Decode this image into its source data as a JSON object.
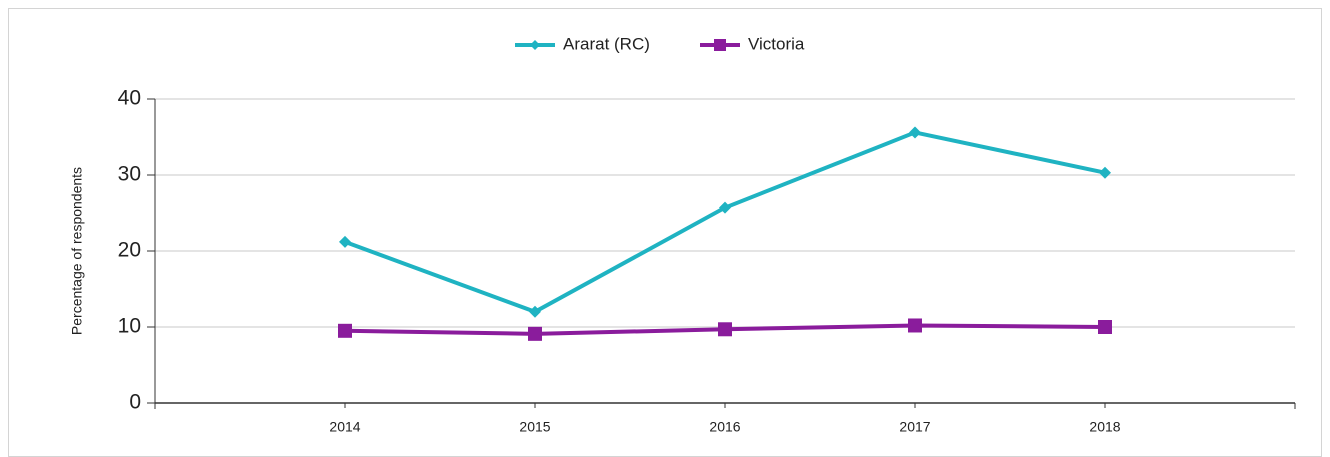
{
  "chart_data": {
    "type": "line",
    "y_label": "Percentage of respondents",
    "categories": [
      "2014",
      "2015",
      "2016",
      "2017",
      "2018"
    ],
    "series": [
      {
        "name": "Ararat (RC)",
        "color": "#1fb3c2",
        "marker": "diamond",
        "values": [
          21.2,
          12.0,
          25.7,
          35.6,
          30.3
        ]
      },
      {
        "name": "Victoria",
        "color": "#8a1c9c",
        "marker": "square",
        "values": [
          9.5,
          9.1,
          9.7,
          10.2,
          10.0
        ]
      }
    ],
    "ylim": [
      0,
      40
    ],
    "yticks": [
      0,
      10,
      20,
      30,
      40
    ],
    "grid": true,
    "legend": "top"
  }
}
